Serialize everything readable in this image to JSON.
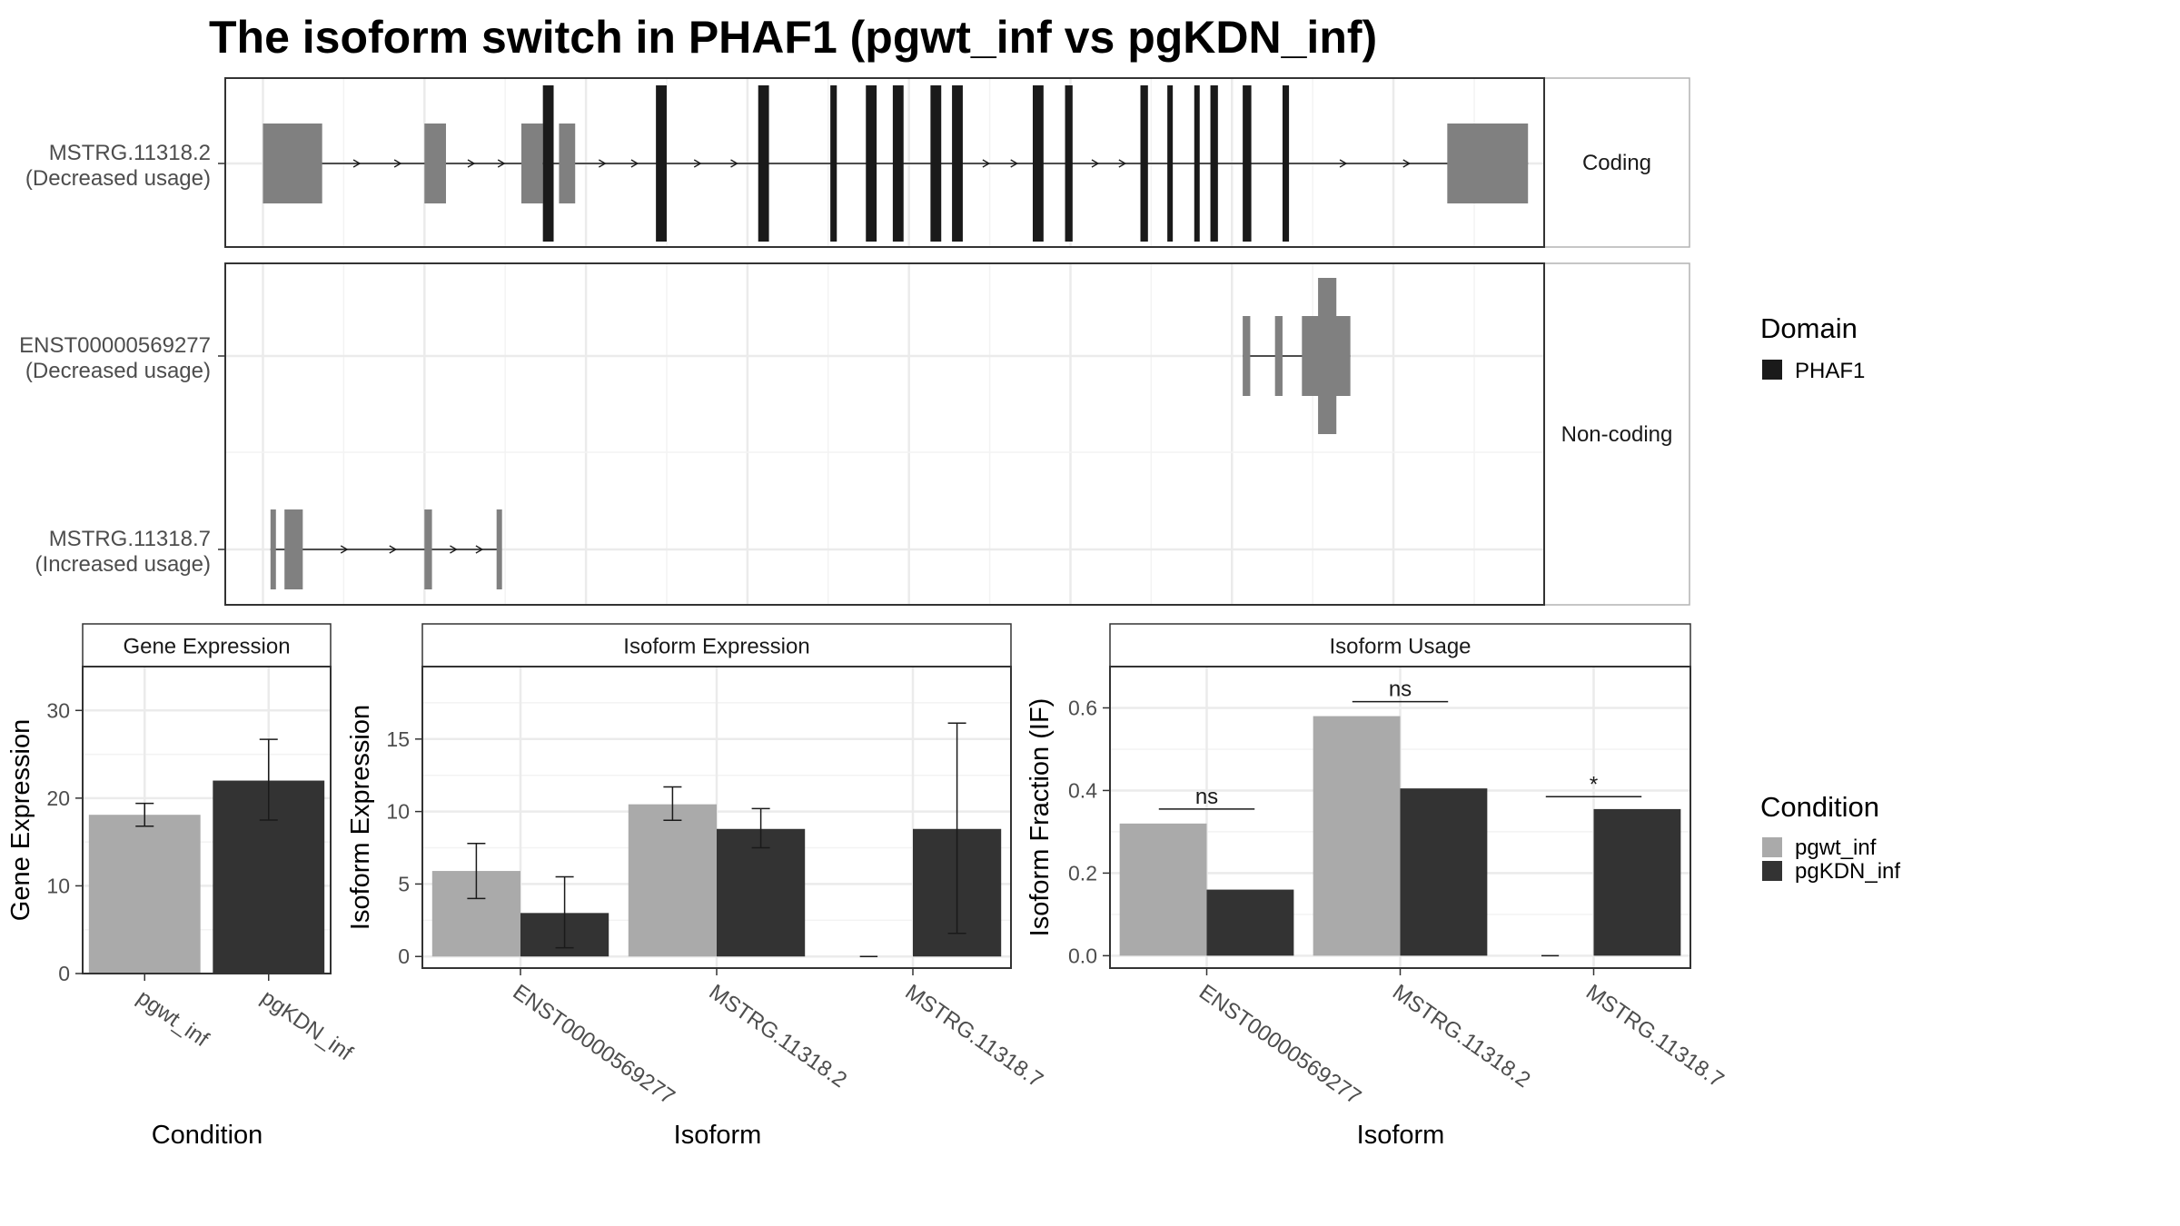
{
  "title": "The isoform switch in PHAF1 (pgwt_inf vs pgKDN_inf)",
  "colors": {
    "domain": "#1a1a1a",
    "utr": "#808080",
    "cond1": "#aaaaaa",
    "cond2": "#333333",
    "grid": "#ebebeb",
    "strip": "#ffffff"
  },
  "chart_data": [
    {
      "type": "gene-structure",
      "facets": [
        {
          "label": "Coding",
          "isoforms": [
            {
              "name": "MSTRG.11318.2\n(Decreased usage)",
              "utr_blocks": [
                [
                  0.85,
                  1.4
                ],
                [
                  2.35,
                  2.55
                ],
                [
                  3.25,
                  3.45
                ],
                [
                  3.6,
                  3.75
                ],
                [
                  11.85,
                  12.6
                ]
              ],
              "cds_blocks": [
                [
                  3.45,
                  3.55
                ],
                [
                  4.5,
                  4.6
                ],
                [
                  5.45,
                  5.55
                ],
                [
                  6.12,
                  6.18
                ],
                [
                  6.45,
                  6.55
                ],
                [
                  6.7,
                  6.8
                ],
                [
                  7.05,
                  7.15
                ],
                [
                  7.25,
                  7.35
                ],
                [
                  8.0,
                  8.1
                ],
                [
                  8.3,
                  8.37
                ],
                [
                  9.0,
                  9.07
                ],
                [
                  9.25,
                  9.3
                ],
                [
                  9.5,
                  9.55
                ],
                [
                  9.65,
                  9.72
                ],
                [
                  9.95,
                  10.03
                ],
                [
                  10.32,
                  10.38
                ]
              ]
            }
          ]
        },
        {
          "label": "Non-coding",
          "isoforms": [
            {
              "name": "ENST00000569277\n(Decreased usage)",
              "noncoding_blocks": [
                [
                  9.95,
                  10.02
                ],
                [
                  10.25,
                  10.32
                ],
                [
                  10.5,
                  10.95
                ]
              ],
              "tall_block": [
                10.65,
                10.82
              ]
            },
            {
              "name": "MSTRG.11318.7\n(Increased usage)",
              "noncoding_blocks": [
                [
                  0.92,
                  0.96
                ],
                [
                  1.05,
                  1.22
                ],
                [
                  2.35,
                  2.42
                ],
                [
                  3.02,
                  3.05
                ]
              ]
            }
          ]
        }
      ],
      "legend": {
        "title": "Domain",
        "entries": [
          "PHAF1"
        ]
      }
    },
    {
      "type": "bar",
      "title": "Gene Expression",
      "xlabel": "Condition",
      "ylabel": "Gene Expression",
      "categories": [
        "pgwt_inf",
        "pgKDN_inf"
      ],
      "values": [
        18.1,
        22
      ],
      "errors": [
        [
          16.8,
          19.4
        ],
        [
          17.5,
          26.7
        ]
      ],
      "ylim": [
        0,
        35
      ],
      "yticks": [
        0,
        10,
        20,
        30
      ]
    },
    {
      "type": "bar",
      "title": "Isoform Expression",
      "xlabel": "Isoform",
      "ylabel": "Isoform Expression",
      "categories": [
        "ENST00000569277",
        "MSTRG.11318.2",
        "MSTRG.11318.7"
      ],
      "series": [
        {
          "name": "pgwt_inf",
          "values": [
            5.9,
            10.5,
            0
          ],
          "errors": [
            [
              4.0,
              7.8
            ],
            [
              9.4,
              11.7
            ],
            [
              0,
              0
            ]
          ]
        },
        {
          "name": "pgKDN_inf",
          "values": [
            3.0,
            8.8,
            8.8
          ],
          "errors": [
            [
              0.6,
              5.5
            ],
            [
              7.5,
              10.2
            ],
            [
              1.6,
              16.1
            ]
          ]
        }
      ],
      "ylim": [
        -0.8,
        20
      ],
      "yticks": [
        0,
        5,
        10,
        15
      ]
    },
    {
      "type": "bar",
      "title": "Isoform Usage",
      "xlabel": "Isoform",
      "ylabel": "Isoform Fraction (IF)",
      "categories": [
        "ENST00000569277",
        "MSTRG.11318.2",
        "MSTRG.11318.7"
      ],
      "series": [
        {
          "name": "pgwt_inf",
          "values": [
            0.32,
            0.58,
            0
          ]
        },
        {
          "name": "pgKDN_inf",
          "values": [
            0.16,
            0.405,
            0.355
          ]
        }
      ],
      "significance": [
        {
          "label": "ns",
          "y": 0.355
        },
        {
          "label": "ns",
          "y": 0.615
        },
        {
          "label": "*",
          "y": 0.385
        }
      ],
      "ylim": [
        -0.03,
        0.7
      ],
      "yticks": [
        0.0,
        0.2,
        0.4,
        0.6
      ],
      "legend": {
        "title": "Condition",
        "entries": [
          "pgwt_inf",
          "pgKDN_inf"
        ]
      }
    }
  ]
}
